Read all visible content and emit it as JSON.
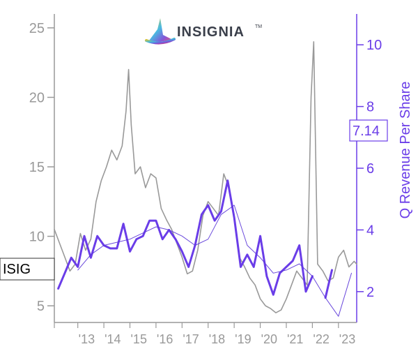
{
  "logo": {
    "text": "INSIGNIA",
    "mark": "TM"
  },
  "ticker": "ISIG",
  "current_value": "7.14",
  "colors": {
    "price": "#999999",
    "revenue": "#6a3de8",
    "revenue_avg": "#5a35d8",
    "axis_left": "#999999",
    "axis_right": "#6a3de8",
    "logo_text": "#3a3f4a",
    "logo_gradient": [
      "#f0c419",
      "#3fb8e0",
      "#7b4fd8",
      "#e0457b"
    ]
  },
  "chart_data": {
    "type": "line",
    "title": "",
    "xlabel": "",
    "ylabel_left": "",
    "ylabel_right": "Q Revenue Per Share",
    "x_range": [
      2012.1,
      2023.7
    ],
    "x_ticks": [
      {
        "value": 2013,
        "label": "'13"
      },
      {
        "value": 2014,
        "label": "'14"
      },
      {
        "value": 2015,
        "label": "'15"
      },
      {
        "value": 2016,
        "label": "'16"
      },
      {
        "value": 2017,
        "label": "'17"
      },
      {
        "value": 2018,
        "label": "'18"
      },
      {
        "value": 2019,
        "label": "'19"
      },
      {
        "value": 2020,
        "label": "'20"
      },
      {
        "value": 2021,
        "label": "'21"
      },
      {
        "value": 2022,
        "label": "'22"
      },
      {
        "value": 2023,
        "label": "'23"
      }
    ],
    "y_left_range": [
      3.8,
      26
    ],
    "y_left_ticks": [
      5,
      10,
      15,
      20,
      25
    ],
    "y_right_range": [
      1.0,
      11.0
    ],
    "y_right_ticks": [
      2,
      4,
      6,
      8,
      10
    ],
    "grid": false,
    "series": [
      {
        "axis": "left",
        "style": "price",
        "x": [
          2012.1,
          2012.3,
          2012.5,
          2012.7,
          2012.9,
          2013.1,
          2013.3,
          2013.5,
          2013.7,
          2013.9,
          2014.1,
          2014.3,
          2014.5,
          2014.7,
          2014.85,
          2014.95,
          2015.05,
          2015.2,
          2015.4,
          2015.6,
          2015.8,
          2016.0,
          2016.2,
          2016.4,
          2016.6,
          2016.8,
          2017.0,
          2017.2,
          2017.4,
          2017.6,
          2017.8,
          2018.0,
          2018.2,
          2018.4,
          2018.6,
          2018.8,
          2019.0,
          2019.2,
          2019.4,
          2019.6,
          2019.8,
          2020.0,
          2020.2,
          2020.4,
          2020.6,
          2020.8,
          2021.0,
          2021.2,
          2021.4,
          2021.6,
          2021.8,
          2021.95,
          2022.05,
          2022.2,
          2022.4,
          2022.6,
          2022.8,
          2023.0,
          2023.2,
          2023.4,
          2023.6,
          2023.7
        ],
        "values": [
          10.5,
          9.5,
          8.5,
          7.5,
          8.0,
          10.2,
          9.0,
          9.8,
          12.5,
          14.0,
          15.0,
          16.2,
          15.5,
          16.5,
          19.0,
          22.0,
          18.0,
          14.5,
          15.0,
          13.5,
          14.5,
          14.2,
          12.0,
          11.2,
          10.5,
          9.5,
          8.5,
          7.3,
          7.5,
          9.0,
          11.5,
          12.5,
          12.0,
          11.5,
          14.5,
          13.5,
          11.5,
          8.5,
          7.8,
          7.0,
          6.5,
          5.5,
          5.0,
          4.8,
          4.5,
          4.7,
          5.5,
          6.5,
          7.5,
          7.0,
          6.5,
          20.0,
          24.0,
          8.0,
          7.5,
          6.8,
          7.0,
          8.5,
          9.0,
          7.8,
          8.2,
          8.0
        ]
      },
      {
        "axis": "right",
        "style": "revenue",
        "x": [
          2012.25,
          2012.5,
          2012.75,
          2013.0,
          2013.25,
          2013.5,
          2013.75,
          2014.0,
          2014.25,
          2014.5,
          2014.75,
          2015.0,
          2015.25,
          2015.5,
          2015.75,
          2016.0,
          2016.25,
          2016.5,
          2016.75,
          2017.0,
          2017.25,
          2017.5,
          2017.75,
          2018.0,
          2018.25,
          2018.5,
          2018.75,
          2019.0,
          2019.25,
          2019.5,
          2019.75,
          2020.0,
          2020.25,
          2020.5,
          2020.75,
          2021.0,
          2021.25,
          2021.5,
          2021.75,
          2022.0,
          2022.25,
          2022.5,
          2022.75
        ],
        "values": [
          2.1,
          2.6,
          3.1,
          2.8,
          3.8,
          3.1,
          3.8,
          3.5,
          3.4,
          3.4,
          4.2,
          3.3,
          3.7,
          3.8,
          4.3,
          4.3,
          3.7,
          4.0,
          3.7,
          3.3,
          2.8,
          3.5,
          4.5,
          4.8,
          4.3,
          4.6,
          5.6,
          4.4,
          2.8,
          3.2,
          2.8,
          3.8,
          2.5,
          1.9,
          2.6,
          2.8,
          3.0,
          3.5,
          2.0,
          2.5,
          null,
          1.8,
          2.7
        ]
      },
      {
        "axis": "right",
        "style": "revenue_avg",
        "x": [
          2013.0,
          2013.5,
          2014.0,
          2014.5,
          2015.0,
          2015.5,
          2016.0,
          2016.5,
          2017.0,
          2017.5,
          2018.0,
          2018.5,
          2019.0,
          2019.5,
          2020.0,
          2020.5,
          2021.0,
          2021.5,
          2022.0,
          2022.5,
          2023.0,
          2023.5
        ],
        "values": [
          2.7,
          3.2,
          3.5,
          3.6,
          3.7,
          3.9,
          4.1,
          4.0,
          3.8,
          3.5,
          3.7,
          4.5,
          4.8,
          3.5,
          3.1,
          2.6,
          2.7,
          2.9,
          2.5,
          1.8,
          1.2,
          2.6
        ]
      }
    ]
  }
}
